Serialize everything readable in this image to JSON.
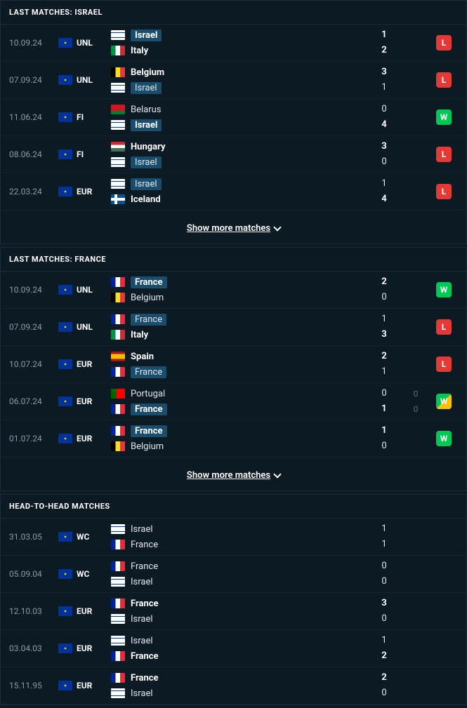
{
  "sections": [
    {
      "title": "LAST MATCHES: ISRAEL",
      "showMore": "Show more matches",
      "matches": [
        {
          "date": "10.09.24",
          "comp": "UNL",
          "home": {
            "name": "Israel",
            "flag": "israel",
            "bold": true,
            "hl": true
          },
          "away": {
            "name": "Italy",
            "flag": "italy",
            "bold": true
          },
          "homeScore": "1",
          "awayScore": "2",
          "result": "L"
        },
        {
          "date": "07.09.24",
          "comp": "UNL",
          "home": {
            "name": "Belgium",
            "flag": "belgium",
            "bold": true
          },
          "away": {
            "name": "Israel",
            "flag": "israel",
            "bold": false,
            "hl": true
          },
          "homeScore": "3",
          "awayScore": "1",
          "result": "L"
        },
        {
          "date": "11.06.24",
          "comp": "FI",
          "home": {
            "name": "Belarus",
            "flag": "belarus",
            "bold": false
          },
          "away": {
            "name": "Israel",
            "flag": "israel",
            "bold": true,
            "hl": true
          },
          "homeScore": "0",
          "awayScore": "4",
          "result": "W"
        },
        {
          "date": "08.06.24",
          "comp": "FI",
          "home": {
            "name": "Hungary",
            "flag": "hungary",
            "bold": true
          },
          "away": {
            "name": "Israel",
            "flag": "israel",
            "bold": false,
            "hl": true
          },
          "homeScore": "3",
          "awayScore": "0",
          "result": "L"
        },
        {
          "date": "22.03.24",
          "comp": "EUR",
          "home": {
            "name": "Israel",
            "flag": "israel",
            "bold": false,
            "hl": true
          },
          "away": {
            "name": "Iceland",
            "flag": "iceland",
            "bold": true
          },
          "homeScore": "1",
          "awayScore": "4",
          "result": "L"
        }
      ]
    },
    {
      "title": "LAST MATCHES: FRANCE",
      "showMore": "Show more matches",
      "matches": [
        {
          "date": "10.09.24",
          "comp": "UNL",
          "home": {
            "name": "France",
            "flag": "france",
            "bold": true,
            "hl": true
          },
          "away": {
            "name": "Belgium",
            "flag": "belgium",
            "bold": false
          },
          "homeScore": "2",
          "awayScore": "0",
          "result": "W"
        },
        {
          "date": "07.09.24",
          "comp": "UNL",
          "home": {
            "name": "France",
            "flag": "france",
            "bold": false,
            "hl": true
          },
          "away": {
            "name": "Italy",
            "flag": "italy",
            "bold": true
          },
          "homeScore": "1",
          "awayScore": "3",
          "result": "L"
        },
        {
          "date": "10.07.24",
          "comp": "EUR",
          "home": {
            "name": "Spain",
            "flag": "spain",
            "bold": true
          },
          "away": {
            "name": "France",
            "flag": "france",
            "bold": false,
            "hl": true
          },
          "homeScore": "2",
          "awayScore": "1",
          "result": "L"
        },
        {
          "date": "06.07.24",
          "comp": "EUR",
          "home": {
            "name": "Portugal",
            "flag": "portugal",
            "bold": false
          },
          "away": {
            "name": "France",
            "flag": "france",
            "bold": true,
            "hl": true
          },
          "homeScore": "0",
          "awayScore": "1",
          "extraHome": "0",
          "extraAway": "0",
          "result": "W",
          "pen": true
        },
        {
          "date": "01.07.24",
          "comp": "EUR",
          "home": {
            "name": "France",
            "flag": "france",
            "bold": true,
            "hl": true
          },
          "away": {
            "name": "Belgium",
            "flag": "belgium",
            "bold": false
          },
          "homeScore": "1",
          "awayScore": "0",
          "result": "W"
        }
      ]
    },
    {
      "title": "HEAD-TO-HEAD MATCHES",
      "matches": [
        {
          "date": "31.03.05",
          "comp": "WC",
          "home": {
            "name": "Israel",
            "flag": "israel",
            "bold": false
          },
          "away": {
            "name": "France",
            "flag": "france",
            "bold": false
          },
          "homeScore": "1",
          "awayScore": "1"
        },
        {
          "date": "05.09.04",
          "comp": "WC",
          "home": {
            "name": "France",
            "flag": "france",
            "bold": false
          },
          "away": {
            "name": "Israel",
            "flag": "israel",
            "bold": false
          },
          "homeScore": "0",
          "awayScore": "0"
        },
        {
          "date": "12.10.03",
          "comp": "EUR",
          "home": {
            "name": "France",
            "flag": "france",
            "bold": true
          },
          "away": {
            "name": "Israel",
            "flag": "israel",
            "bold": false
          },
          "homeScore": "3",
          "awayScore": "0"
        },
        {
          "date": "03.04.03",
          "comp": "EUR",
          "home": {
            "name": "Israel",
            "flag": "israel",
            "bold": false
          },
          "away": {
            "name": "France",
            "flag": "france",
            "bold": true
          },
          "homeScore": "1",
          "awayScore": "2"
        },
        {
          "date": "15.11.95",
          "comp": "EUR",
          "home": {
            "name": "France",
            "flag": "france",
            "bold": true
          },
          "away": {
            "name": "Israel",
            "flag": "israel",
            "bold": false
          },
          "homeScore": "2",
          "awayScore": "0"
        }
      ]
    }
  ]
}
